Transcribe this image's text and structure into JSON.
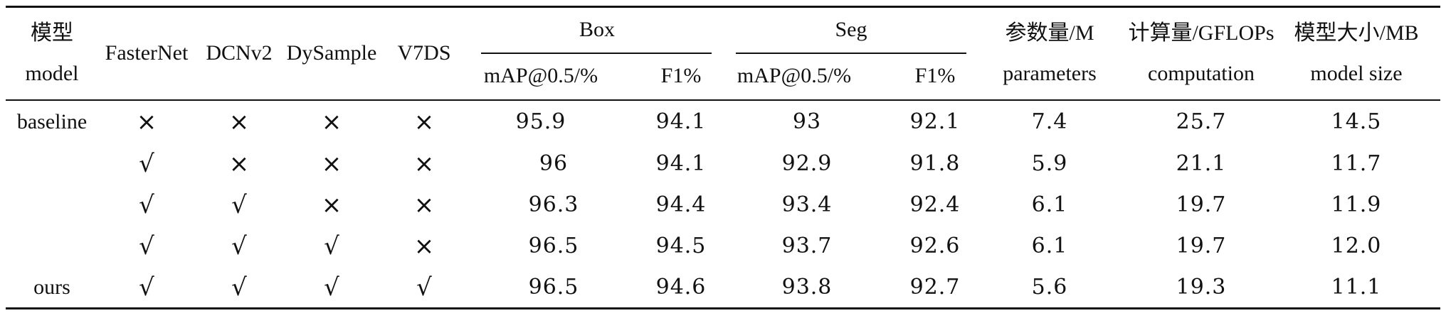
{
  "header": {
    "model_cn": "模型",
    "model_en": "model",
    "fasternet": "FasterNet",
    "dcnv2": "DCNv2",
    "dysample": "DySample",
    "v7ds": "V7DS",
    "box": "Box",
    "seg": "Seg",
    "box_map": "mAP@0.5/%",
    "box_f1": "F1%",
    "seg_map": "mAP@0.5/%",
    "seg_f1": "F1%",
    "params_cn": "参数量/M",
    "params_en": "parameters",
    "comp_cn": "计算量/GFLOPs",
    "comp_en": "computation",
    "size_cn": "模型大小/MB",
    "size_en": "model size"
  },
  "rows": [
    {
      "model": "baseline",
      "fasternet": "×",
      "dcnv2": "×",
      "dysample": "×",
      "v7ds": "×",
      "box_map": "95.9",
      "box_f1": "94.1",
      "seg_map": "93",
      "seg_f1": "92.1",
      "params": "7.4",
      "comp": "25.7",
      "size": "14.5"
    },
    {
      "model": "",
      "fasternet": "√",
      "dcnv2": "×",
      "dysample": "×",
      "v7ds": "×",
      "box_map": "96",
      "box_f1": "94.1",
      "seg_map": "92.9",
      "seg_f1": "91.8",
      "params": "5.9",
      "comp": "21.1",
      "size": "11.7"
    },
    {
      "model": "",
      "fasternet": "√",
      "dcnv2": "√",
      "dysample": "×",
      "v7ds": "×",
      "box_map": "96.3",
      "box_f1": "94.4",
      "seg_map": "93.4",
      "seg_f1": "92.4",
      "params": "6.1",
      "comp": "19.7",
      "size": "11.9"
    },
    {
      "model": "",
      "fasternet": "√",
      "dcnv2": "√",
      "dysample": "√",
      "v7ds": "×",
      "box_map": "96.5",
      "box_f1": "94.5",
      "seg_map": "93.7",
      "seg_f1": "92.6",
      "params": "6.1",
      "comp": "19.7",
      "size": "12.0"
    },
    {
      "model": "ours",
      "fasternet": "√",
      "dcnv2": "√",
      "dysample": "√",
      "v7ds": "√",
      "box_map": "96.5",
      "box_f1": "94.6",
      "seg_map": "93.8",
      "seg_f1": "92.7",
      "params": "5.6",
      "comp": "19.3",
      "size": "11.1"
    }
  ]
}
